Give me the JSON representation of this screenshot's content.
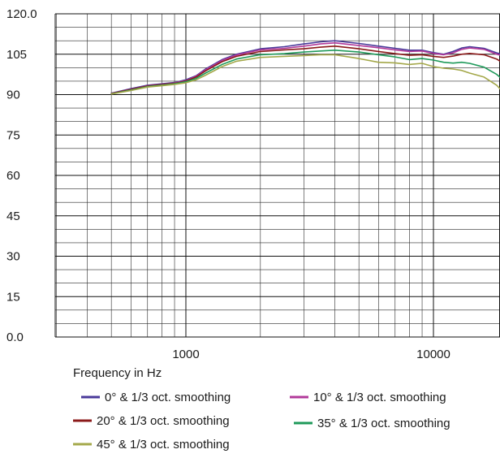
{
  "chart_data": {
    "type": "line",
    "title": "",
    "xlabel": "Frequency in Hz",
    "ylabel": "",
    "x_scale": "log",
    "xlim": [
      300,
      20000
    ],
    "ylim": [
      0,
      120
    ],
    "x_ticks": [
      1000,
      10000
    ],
    "x_tick_labels": [
      "1000",
      "10000"
    ],
    "y_ticks": [
      0,
      15,
      30,
      45,
      60,
      75,
      90,
      105,
      120
    ],
    "y_tick_labels": [
      "0.0",
      "15",
      "30",
      "45",
      "60",
      "75",
      "90",
      "105",
      "120.0"
    ],
    "grid": true,
    "legend_position": "bottom",
    "series": [
      {
        "name": "0° & 1/3 oct. smoothing",
        "color": "#4a3a9a",
        "x": [
          500,
          600,
          700,
          800,
          900,
          1000,
          1100,
          1200,
          1400,
          1600,
          2000,
          2500,
          3000,
          3500,
          4000,
          5000,
          6000,
          7000,
          8000,
          9000,
          10000,
          11000,
          12000,
          13000,
          14000,
          16000,
          18000,
          20000
        ],
        "y": [
          90.5,
          92.2,
          93.5,
          94.0,
          94.5,
          95.5,
          97.0,
          99.5,
          103.0,
          105.0,
          107.0,
          107.8,
          108.8,
          109.6,
          110.0,
          109.0,
          108.0,
          107.2,
          106.5,
          106.5,
          105.6,
          105.0,
          106.0,
          107.3,
          107.8,
          107.2,
          105.5,
          104.5
        ]
      },
      {
        "name": "10° & 1/3 oct. smoothing",
        "color": "#b23a9a",
        "x": [
          500,
          600,
          700,
          800,
          900,
          1000,
          1100,
          1200,
          1400,
          1600,
          2000,
          2500,
          3000,
          3500,
          4000,
          5000,
          6000,
          7000,
          8000,
          9000,
          10000,
          11000,
          12000,
          13000,
          14000,
          16000,
          18000,
          20000
        ],
        "y": [
          90.4,
          92.0,
          93.3,
          93.8,
          94.3,
          95.2,
          96.8,
          99.2,
          102.7,
          104.7,
          106.6,
          107.2,
          108.0,
          108.8,
          109.2,
          108.2,
          107.4,
          106.6,
          106.0,
          106.2,
          105.3,
          104.8,
          105.5,
          106.8,
          107.3,
          106.8,
          105.0,
          104.0
        ]
      },
      {
        "name": "20° & 1/3 oct. smoothing",
        "color": "#8b1a1a",
        "x": [
          500,
          600,
          700,
          800,
          900,
          1000,
          1100,
          1200,
          1400,
          1600,
          2000,
          2500,
          3000,
          3500,
          4000,
          5000,
          6000,
          7000,
          8000,
          9000,
          10000,
          11000,
          12000,
          13000,
          14000,
          16000,
          18000,
          20000
        ],
        "y": [
          90.4,
          91.9,
          93.2,
          93.7,
          94.2,
          95.0,
          96.5,
          98.8,
          102.2,
          104.2,
          106.0,
          106.6,
          107.0,
          107.6,
          108.0,
          107.0,
          106.0,
          105.2,
          104.6,
          104.8,
          104.2,
          103.8,
          104.3,
          105.0,
          105.3,
          104.8,
          103.2,
          100.5
        ]
      },
      {
        "name": "35° & 1/3 oct. smoothing",
        "color": "#1f9a5a",
        "x": [
          500,
          600,
          700,
          800,
          900,
          1000,
          1100,
          1200,
          1400,
          1600,
          2000,
          2500,
          3000,
          3500,
          4000,
          5000,
          6000,
          7000,
          8000,
          9000,
          10000,
          11000,
          12000,
          13000,
          14000,
          16000,
          18000,
          20000
        ],
        "y": [
          90.3,
          91.7,
          93.0,
          93.5,
          94.0,
          94.8,
          96.0,
          98.0,
          101.2,
          103.2,
          104.8,
          105.2,
          105.8,
          106.2,
          106.5,
          105.8,
          104.8,
          104.0,
          103.0,
          103.4,
          102.8,
          102.0,
          101.7,
          102.0,
          101.6,
          100.2,
          97.5,
          94.0
        ]
      },
      {
        "name": "45° & 1/3 oct. smoothing",
        "color": "#a4a84a",
        "x": [
          500,
          600,
          700,
          800,
          900,
          1000,
          1100,
          1200,
          1400,
          1600,
          2000,
          2500,
          3000,
          3500,
          4000,
          5000,
          6000,
          7000,
          8000,
          9000,
          10000,
          11000,
          12000,
          13000,
          14000,
          16000,
          18000,
          20000
        ],
        "y": [
          90.2,
          91.5,
          92.8,
          93.3,
          93.8,
          94.4,
          95.5,
          97.2,
          100.4,
          102.4,
          103.8,
          104.2,
          104.5,
          104.8,
          104.8,
          103.4,
          102.0,
          101.8,
          101.2,
          101.6,
          100.4,
          99.8,
          99.5,
          99.0,
          98.0,
          96.5,
          93.5,
          89.0
        ]
      }
    ]
  }
}
